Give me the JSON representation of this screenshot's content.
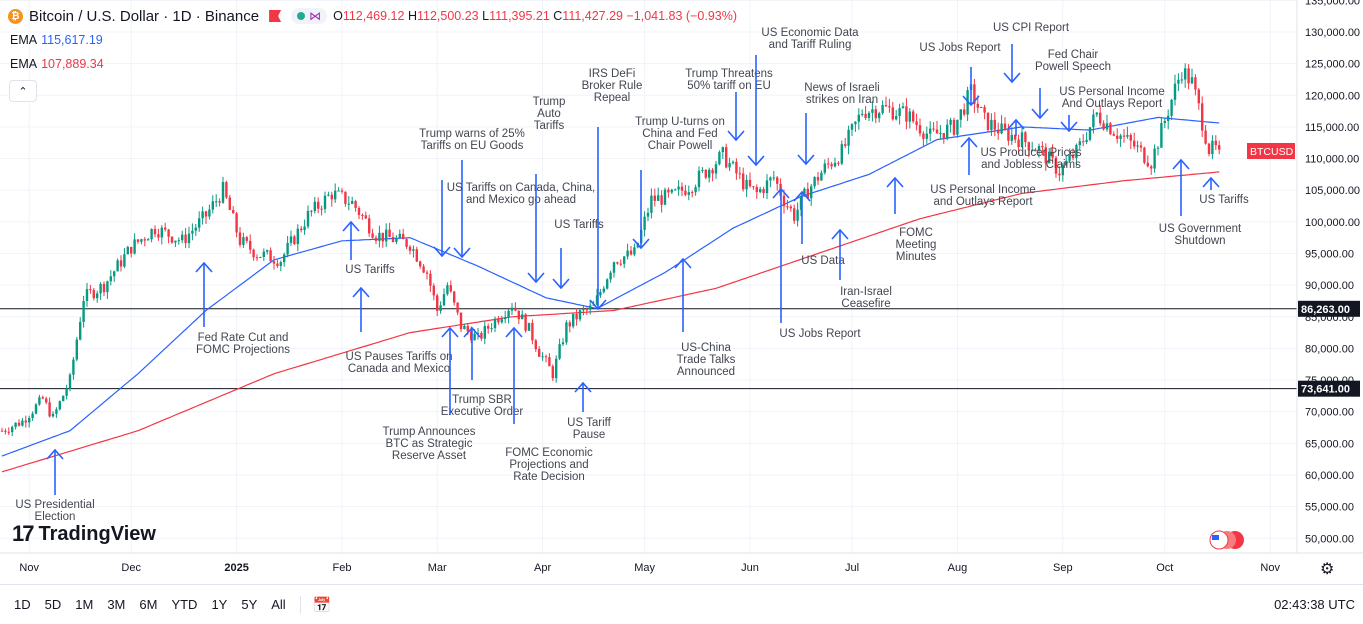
{
  "header": {
    "symbol": "Bitcoin / U.S. Dollar · 1D · Binance",
    "ohlc": {
      "o_label": "O",
      "o": "112,469.12",
      "h_label": "H",
      "h": "112,500.23",
      "l_label": "L",
      "l": "111,395.21",
      "c_label": "C",
      "c": "111,427.29",
      "change": "−1,041.83 (−0.93%)"
    },
    "ema1_label": "EMA",
    "ema1_value": "115,617.19",
    "ema2_label": "EMA",
    "ema2_value": "107,889.34"
  },
  "colors": {
    "up": "#089981",
    "down": "#f23645",
    "ema_fast": "#2962ff",
    "ema_slow": "#f23645",
    "arrow": "#2962ff",
    "annotation_text": "#434651"
  },
  "brand": "TradingView",
  "timeframes": [
    "1D",
    "5D",
    "1M",
    "3M",
    "6M",
    "YTD",
    "1Y",
    "5Y",
    "All"
  ],
  "clock": "02:43:38 UTC",
  "chart_data": {
    "type": "candlestick",
    "symbol_tag": "BTCUSD",
    "ylim": [
      47000,
      137000
    ],
    "y_ticks": [
      50000,
      55000,
      60000,
      65000,
      70000,
      75000,
      80000,
      85000,
      90000,
      95000,
      100000,
      105000,
      110000,
      115000,
      120000,
      125000,
      130000,
      135000
    ],
    "y_tick_labels": [
      "50,000.00",
      "55,000.00",
      "60,000.00",
      "65,000.00",
      "70,000.00",
      "75,000.00",
      "80,000.00",
      "85,000.00",
      "90,000.00",
      "95,000.00",
      "100,000.00",
      "105,000.00",
      "110,000.00",
      "115,000.00",
      "120,000.00",
      "125,000.00",
      "130,000.00",
      "135,000.00"
    ],
    "x_tick_labels": [
      "Nov",
      "Dec",
      "2025",
      "Feb",
      "Mar",
      "Apr",
      "May",
      "Jun",
      "Jul",
      "Aug",
      "Sep",
      "Oct",
      "Nov"
    ],
    "x_tick_days": [
      8,
      38,
      69,
      100,
      128,
      159,
      189,
      220,
      250,
      281,
      312,
      342,
      373
    ],
    "horizontal_levels": [
      {
        "value": 86263,
        "label": "86,263.00"
      },
      {
        "value": 73641,
        "label": "73,641.00"
      }
    ],
    "last_price": 111427,
    "path_days": [
      0,
      6,
      12,
      15,
      20,
      24,
      30,
      38,
      45,
      53,
      60,
      65,
      70,
      75,
      82,
      90,
      97,
      103,
      110,
      117,
      120,
      125,
      128,
      131,
      135,
      140,
      145,
      150,
      155,
      158,
      162,
      166,
      170,
      174,
      180,
      186,
      191,
      197,
      203,
      212,
      219,
      222,
      227,
      230,
      233,
      237,
      242,
      247,
      253,
      259,
      266,
      273,
      280,
      285,
      289,
      295,
      300,
      305,
      311,
      316,
      322,
      328,
      333,
      338,
      342,
      345,
      347,
      350,
      352,
      355,
      358
    ],
    "path_closes": [
      67000,
      68500,
      72000,
      69000,
      75000,
      88000,
      90000,
      96000,
      99000,
      97000,
      101000,
      105000,
      97000,
      95000,
      94000,
      101000,
      104500,
      103000,
      98000,
      97000,
      96500,
      92000,
      86000,
      90000,
      83500,
      81500,
      84500,
      87000,
      83000,
      79500,
      76000,
      83500,
      85500,
      86500,
      94000,
      95000,
      103500,
      104000,
      106000,
      110500,
      105500,
      104500,
      107000,
      103500,
      101000,
      105000,
      108500,
      111000,
      117500,
      118000,
      117000,
      113500,
      115000,
      120500,
      116000,
      114000,
      113000,
      111500,
      108000,
      111000,
      117000,
      114000,
      112000,
      109500,
      116000,
      121000,
      124000,
      122000,
      118000,
      111500,
      111400
    ],
    "ema_fast_points": [
      [
        0,
        63000
      ],
      [
        20,
        67000
      ],
      [
        40,
        76000
      ],
      [
        60,
        86000
      ],
      [
        80,
        94000
      ],
      [
        100,
        97000
      ],
      [
        120,
        97500
      ],
      [
        140,
        93000
      ],
      [
        160,
        88000
      ],
      [
        175,
        86300
      ],
      [
        195,
        92000
      ],
      [
        215,
        99000
      ],
      [
        235,
        104000
      ],
      [
        255,
        107500
      ],
      [
        275,
        113000
      ],
      [
        300,
        115000
      ],
      [
        320,
        114500
      ],
      [
        340,
        116500
      ],
      [
        358,
        115617
      ]
    ],
    "ema_slow_points": [
      [
        0,
        60500
      ],
      [
        40,
        67000
      ],
      [
        80,
        76000
      ],
      [
        120,
        82500
      ],
      [
        150,
        85000
      ],
      [
        180,
        86000
      ],
      [
        210,
        89500
      ],
      [
        240,
        95000
      ],
      [
        270,
        100500
      ],
      [
        300,
        104500
      ],
      [
        330,
        106500
      ],
      [
        358,
        107889
      ]
    ],
    "annotations": [
      {
        "text": [
          "US Presidential",
          "Election"
        ],
        "tx": 55,
        "ty": 508,
        "ax": 55,
        "y1": 495,
        "y2": 450,
        "dir": "up"
      },
      {
        "text": [
          "Fed Rate Cut and",
          "FOMC Projections"
        ],
        "tx": 243,
        "ty": 341,
        "ax": 204,
        "y1": 327,
        "y2": 263,
        "dir": "up"
      },
      {
        "text": [
          "US Tariffs"
        ],
        "tx": 370,
        "ty": 273,
        "ax": 351,
        "y1": 260,
        "y2": 222,
        "dir": "up"
      },
      {
        "text": [
          "US Pauses Tariffs on",
          "Canada and Mexico"
        ],
        "tx": 399,
        "ty": 360,
        "ax": 361,
        "y1": 332,
        "y2": 288,
        "dir": "up"
      },
      {
        "text": [
          "Trump warns of 25%",
          "Tariffs on EU Goods"
        ],
        "tx": 472,
        "ty": 137,
        "ax": 462,
        "y1": 160,
        "y2": 257,
        "dir": "down"
      },
      {
        "text": [
          "US Tariffs on Canada, China,",
          "and Mexico go ahead"
        ],
        "tx": 521,
        "ty": 191,
        "ax": 442,
        "y1": 180,
        "y2": 256,
        "dir": "down"
      },
      {
        "text": [
          "Trump SBR",
          "Executive Order"
        ],
        "tx": 482,
        "ty": 403,
        "ax": 472,
        "y1": 380,
        "y2": 328,
        "dir": "up"
      },
      {
        "text": [
          "Trump Announces",
          "BTC as Strategic",
          "Reserve Asset"
        ],
        "tx": 429,
        "ty": 435,
        "ax": 450,
        "y1": 415,
        "y2": 328,
        "dir": "up"
      },
      {
        "text": [
          "FOMC Economic",
          "Projections and",
          "Rate Decision"
        ],
        "tx": 549,
        "ty": 456,
        "ax": 514,
        "y1": 424,
        "y2": 328,
        "dir": "up"
      },
      {
        "text": [
          "Trump",
          "Auto",
          "Tariffs"
        ],
        "tx": 549,
        "ty": 105,
        "ax": 536,
        "y1": 174,
        "y2": 282,
        "dir": "down"
      },
      {
        "text": [
          "US Tariffs"
        ],
        "tx": 579,
        "ty": 228,
        "ax": 561,
        "y1": 248,
        "y2": 288,
        "dir": "down"
      },
      {
        "text": [
          "IRS DeFi",
          "Broker Rule",
          "Repeal"
        ],
        "tx": 612,
        "ty": 77,
        "ax": 598,
        "y1": 127,
        "y2": 309,
        "dir": "down"
      },
      {
        "text": [
          "US Tariff",
          "Pause"
        ],
        "tx": 589,
        "ty": 426,
        "ax": 583,
        "y1": 412,
        "y2": 383,
        "dir": "up"
      },
      {
        "text": [
          "Trump U-turns on",
          "China and Fed",
          "Chair Powell"
        ],
        "tx": 680,
        "ty": 125,
        "ax": 641,
        "y1": 170,
        "y2": 248,
        "dir": "down"
      },
      {
        "text": [
          "US-China",
          "Trade Talks",
          "Announced"
        ],
        "tx": 706,
        "ty": 351,
        "ax": 683,
        "y1": 332,
        "y2": 259,
        "dir": "up"
      },
      {
        "text": [
          "Trump Threatens",
          "50% tariff on EU"
        ],
        "tx": 729,
        "ty": 77,
        "ax": 736,
        "y1": 92,
        "y2": 140,
        "dir": "down"
      },
      {
        "text": [
          "US Economic Data",
          "and Tariff Ruling"
        ],
        "tx": 810,
        "ty": 36,
        "ax": 756,
        "y1": 55,
        "y2": 165,
        "dir": "down"
      },
      {
        "text": [
          "News of Israeli",
          "strikes on Iran"
        ],
        "tx": 842,
        "ty": 91,
        "ax": 806,
        "y1": 113,
        "y2": 164,
        "dir": "down"
      },
      {
        "text": [
          "US Jobs Report"
        ],
        "tx": 820,
        "ty": 337,
        "ax": 781,
        "y1": 323,
        "y2": 189,
        "dir": "up"
      },
      {
        "text": [
          "US Data"
        ],
        "tx": 823,
        "ty": 264,
        "ax": 802,
        "y1": 244,
        "y2": 192,
        "dir": "up"
      },
      {
        "text": [
          "Iran-Israel",
          "Ceasefire"
        ],
        "tx": 866,
        "ty": 295,
        "ax": 840,
        "y1": 280,
        "y2": 230,
        "dir": "up"
      },
      {
        "text": [
          "FOMC",
          "Meeting",
          "Minutes"
        ],
        "tx": 916,
        "ty": 236,
        "ax": 895,
        "y1": 214,
        "y2": 178,
        "dir": "up"
      },
      {
        "text": [
          "US Jobs Report"
        ],
        "tx": 960,
        "ty": 51,
        "ax": 971,
        "y1": 67,
        "y2": 105,
        "dir": "down"
      },
      {
        "text": [
          "US Personal Income",
          "and Outlays Report"
        ],
        "tx": 983,
        "ty": 193,
        "ax": 969,
        "y1": 175,
        "y2": 138,
        "dir": "up"
      },
      {
        "text": [
          "US CPI Report"
        ],
        "tx": 1031,
        "ty": 31,
        "ax": 1012,
        "y1": 44,
        "y2": 82,
        "dir": "down"
      },
      {
        "text": [
          "Fed Chair",
          "Powell Speech"
        ],
        "tx": 1073,
        "ty": 58,
        "ax": 1040,
        "y1": 88,
        "y2": 118,
        "dir": "down"
      },
      {
        "text": [
          "US Producer Prices",
          "and Jobless Claims"
        ],
        "tx": 1031,
        "ty": 156,
        "ax": 1016,
        "y1": 136,
        "y2": 120,
        "dir": "up"
      },
      {
        "text": [
          "US Personal Income",
          "And Outlays Report"
        ],
        "tx": 1112,
        "ty": 95,
        "ax": 1069,
        "y1": 115,
        "y2": 131,
        "dir": "down"
      },
      {
        "text": [
          "US Government",
          "Shutdown"
        ],
        "tx": 1200,
        "ty": 232,
        "ax": 1181,
        "y1": 216,
        "y2": 160,
        "dir": "up"
      },
      {
        "text": [
          "US Tariffs"
        ],
        "tx": 1224,
        "ty": 203,
        "ax": 1211,
        "y1": 190,
        "y2": 178,
        "dir": "up"
      }
    ]
  }
}
